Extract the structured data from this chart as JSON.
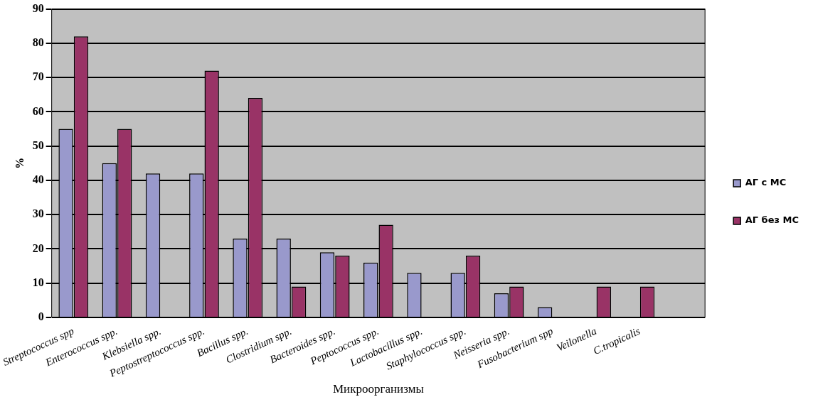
{
  "chart_data": {
    "type": "bar",
    "ylabel": "%",
    "xlabel": "Микроорганизмы",
    "categories": [
      "Streptococcus spp",
      "Enterococcus spp.",
      "Klebsiella spp.",
      "Peptostreptococcus spp.",
      "Bacillus spp.",
      "Clostridium spp.",
      "Bacteroides spp.",
      "Peptococcus spp.",
      "Lactobacillus spp.",
      "Staphylococcus spp.",
      "Neisseria spp.",
      "Fusobacterium spp",
      "Veilonella",
      "C.tropicalis",
      null
    ],
    "series": [
      {
        "name": "АГ с МС",
        "color": "#9999cc",
        "values": [
          55,
          45,
          42,
          42,
          23,
          23,
          19,
          16,
          13,
          13,
          7,
          3,
          null,
          null,
          null
        ]
      },
      {
        "name": "АГ без МС",
        "color": "#993366",
        "values": [
          82,
          55,
          null,
          72,
          64,
          9,
          18,
          27,
          null,
          18,
          9,
          null,
          9,
          9,
          null
        ]
      }
    ],
    "ylim": [
      0,
      90
    ],
    "yticks": [
      0,
      10,
      20,
      30,
      40,
      50,
      60,
      70,
      80,
      90
    ],
    "grid": "y",
    "legend": "right"
  }
}
